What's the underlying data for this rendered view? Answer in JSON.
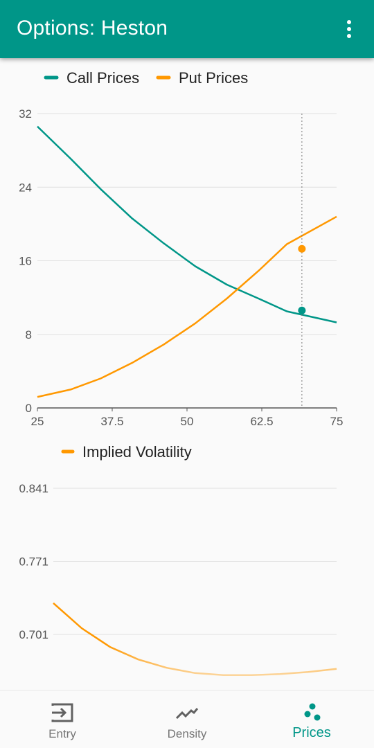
{
  "appbar": {
    "title": "Options: Heston",
    "menu_icon": "more-vert-icon"
  },
  "colors": {
    "primary": "#009688",
    "call": "#009688",
    "put": "#FF9800",
    "grid": "#e0e0e0",
    "axis": "#555555"
  },
  "chart_data": [
    {
      "type": "line",
      "legend_position": "top-left",
      "grid": true,
      "xlim": [
        25,
        75
      ],
      "ylim": [
        0,
        32
      ],
      "x_ticks": [
        "25",
        "37.5",
        "50",
        "62.5",
        "75"
      ],
      "y_ticks": [
        "0",
        "8",
        "16",
        "24",
        "32"
      ],
      "x": [
        25,
        30.56,
        35.56,
        40.83,
        46.11,
        51.39,
        56.67,
        61.94,
        66.67,
        75
      ],
      "series": [
        {
          "name": "Call Prices",
          "color": "#009688",
          "values": [
            30.6,
            27.1,
            23.8,
            20.6,
            17.9,
            15.4,
            13.4,
            11.9,
            10.5,
            9.3
          ]
        },
        {
          "name": "Put Prices",
          "color": "#FF9800",
          "values": [
            1.2,
            2.0,
            3.2,
            4.9,
            6.9,
            9.2,
            11.9,
            14.9,
            17.8,
            20.8
          ]
        }
      ],
      "crosshair_x": 69.2,
      "highlight_points": [
        {
          "series": "Call Prices",
          "x": 69.2,
          "y": 10.6
        },
        {
          "series": "Put Prices",
          "x": 69.2,
          "y": 17.3
        }
      ]
    },
    {
      "type": "line",
      "legend_position": "top-left",
      "grid": true,
      "ylim_visible": [
        0.701,
        0.841
      ],
      "y_ticks": [
        "0.841",
        "0.771",
        "0.701"
      ],
      "x": [
        25,
        30,
        35,
        40,
        45,
        50,
        55,
        60,
        65,
        70,
        75
      ],
      "series": [
        {
          "name": "Implied Volatility",
          "color": "#FF9800",
          "values": [
            0.731,
            0.707,
            0.689,
            0.677,
            0.669,
            0.664,
            0.662,
            0.662,
            0.663,
            0.665,
            0.668
          ]
        }
      ]
    }
  ],
  "bottom_nav": {
    "items": [
      {
        "label": "Entry",
        "icon": "input-icon",
        "active": false
      },
      {
        "label": "Density",
        "icon": "trending-icon",
        "active": false
      },
      {
        "label": "Prices",
        "icon": "scatter-dots-icon",
        "active": true
      }
    ]
  }
}
